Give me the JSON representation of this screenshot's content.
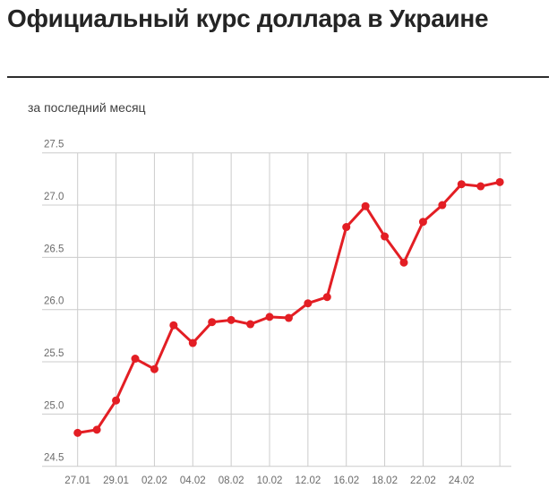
{
  "page": {
    "title": "Официальный курс доллара в Украине",
    "subtitle": "за последний месяц"
  },
  "chart_data": {
    "type": "line",
    "title": "Официальный курс доллара в Украине",
    "subtitle": "за последний месяц",
    "n_points": 23,
    "values": [
      24.82,
      24.85,
      25.13,
      25.53,
      25.43,
      25.85,
      25.68,
      25.88,
      25.9,
      25.86,
      25.93,
      25.92,
      26.06,
      26.12,
      26.79,
      26.99,
      26.7,
      26.45,
      26.84,
      27.0,
      27.2,
      27.18,
      27.22
    ],
    "x_tick_labels": [
      "27.01",
      "29.01",
      "02.02",
      "04.02",
      "08.02",
      "10.02",
      "12.02",
      "16.02",
      "18.02",
      "22.02",
      "24.02"
    ],
    "x_tick_point_indices": [
      0,
      2,
      4,
      6,
      8,
      10,
      12,
      14,
      16,
      18,
      20
    ],
    "x_grid_point_indices": [
      0,
      2,
      4,
      6,
      8,
      10,
      12,
      14,
      16,
      18,
      20,
      22
    ],
    "y_tick_labels": [
      "27.5",
      "27.0",
      "26.5",
      "26.0",
      "25.5",
      "25.0",
      "24.5"
    ],
    "ylim": [
      24.5,
      27.5
    ],
    "grid": true,
    "legend": false,
    "colors": {
      "line": "#e31e24",
      "marker": "#e31e24",
      "grid": "#cccccc",
      "axis_text": "#6b6b6b",
      "title": "#242424",
      "divider": "#2d2d2d",
      "subtitle": "#404040"
    }
  }
}
